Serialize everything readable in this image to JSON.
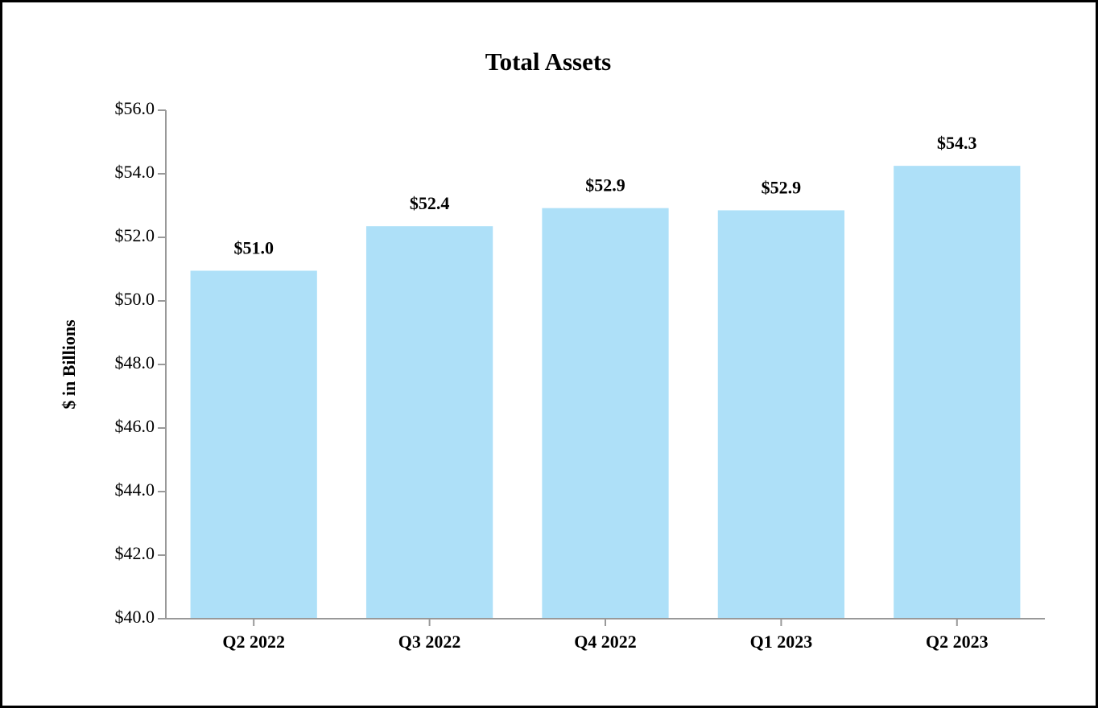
{
  "chart_data": {
    "type": "bar",
    "title": "Total Assets",
    "y_label": "$ in Billions",
    "categories": [
      "Q2 2022",
      "Q3 2022",
      "Q4 2022",
      "Q1 2023",
      "Q2 2023"
    ],
    "values": [
      50.95,
      52.35,
      52.92,
      52.85,
      54.25
    ],
    "value_labels": [
      "$51.0",
      "$52.4",
      "$52.9",
      "$52.9",
      "$54.3"
    ],
    "color": "#aee0f8",
    "ylim": [
      40,
      56
    ],
    "yticks": [
      {
        "value": 40,
        "label": "$40.0"
      },
      {
        "value": 42,
        "label": "$42.0"
      },
      {
        "value": 44,
        "label": "$44.0"
      },
      {
        "value": 46,
        "label": "$46.0"
      },
      {
        "value": 48,
        "label": "$48.0"
      },
      {
        "value": 50,
        "label": "$50.0"
      },
      {
        "value": 52,
        "label": "$52.0"
      },
      {
        "value": 54,
        "label": "$54.0"
      },
      {
        "value": 56,
        "label": "$56.0"
      }
    ],
    "grid": false
  }
}
